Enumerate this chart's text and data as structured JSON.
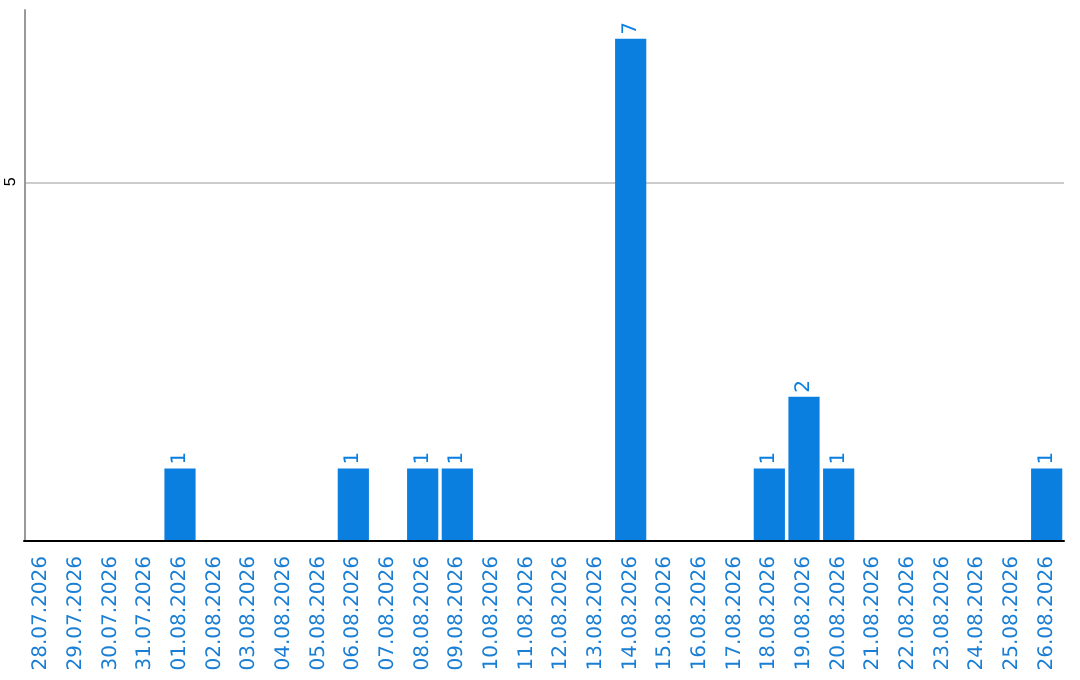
{
  "chart_data": {
    "type": "bar",
    "categories": [
      "28.07.2026",
      "29.07.2026",
      "30.07.2026",
      "31.07.2026",
      "01.08.2026",
      "02.08.2026",
      "03.08.2026",
      "04.08.2026",
      "05.08.2026",
      "06.08.2026",
      "07.08.2026",
      "08.08.2026",
      "09.08.2026",
      "10.08.2026",
      "11.08.2026",
      "12.08.2026",
      "13.08.2026",
      "14.08.2026",
      "15.08.2026",
      "16.08.2026",
      "17.08.2026",
      "18.08.2026",
      "19.08.2026",
      "20.08.2026",
      "21.08.2026",
      "22.08.2026",
      "23.08.2026",
      "24.08.2026",
      "25.08.2026",
      "26.08.2026"
    ],
    "values": [
      0,
      0,
      0,
      0,
      1,
      0,
      0,
      0,
      0,
      1,
      0,
      1,
      1,
      0,
      0,
      0,
      0,
      7,
      0,
      0,
      0,
      1,
      2,
      1,
      0,
      0,
      0,
      0,
      0,
      1
    ],
    "value_labels": [
      null,
      null,
      null,
      null,
      "1",
      null,
      null,
      null,
      null,
      "1",
      null,
      "1",
      "1",
      null,
      null,
      null,
      null,
      "7",
      null,
      null,
      null,
      "1",
      "2",
      "1",
      null,
      null,
      null,
      null,
      null,
      "1"
    ],
    "color": "#0a7fe0",
    "ylim": [
      0,
      7.4
    ],
    "yticks": [
      5
    ],
    "grid": "y"
  }
}
